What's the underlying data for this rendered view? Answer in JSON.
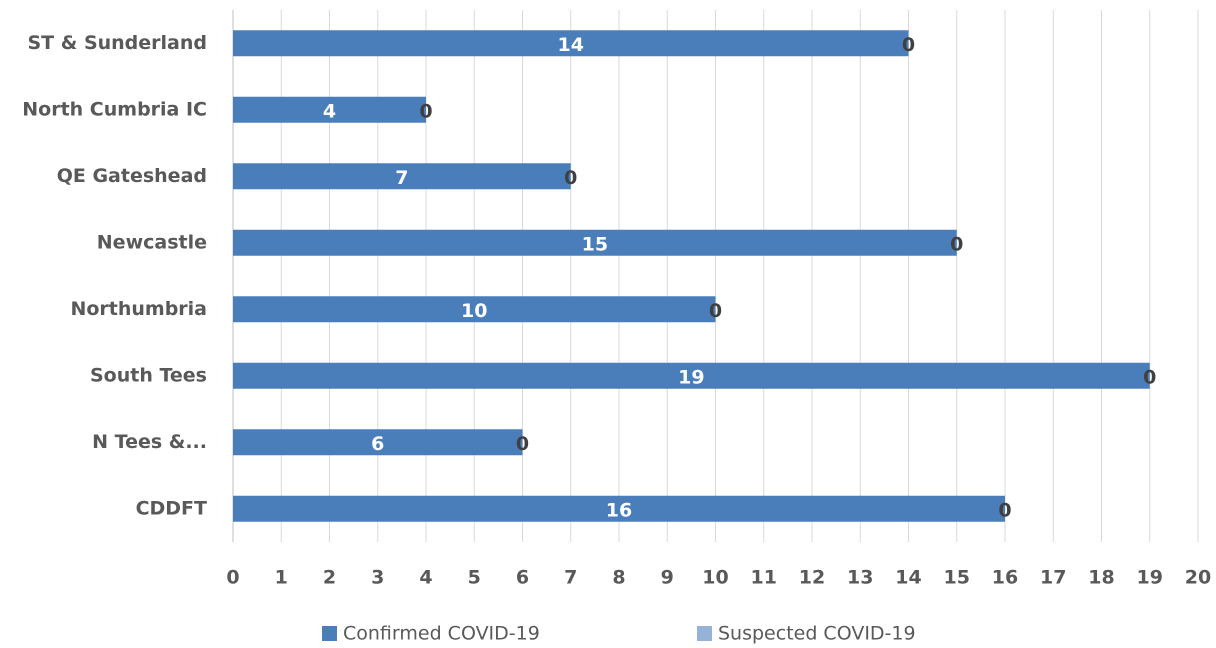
{
  "chart_data": {
    "type": "stacked-barh",
    "categories": [
      "ST & Sunderland",
      "North Cumbria IC",
      "QE Gateshead",
      "Newcastle",
      "Northumbria",
      "South Tees",
      "N Tees &...",
      "CDDFT"
    ],
    "series": [
      {
        "name": "Confirmed COVID-19",
        "color": "#4a7ebb",
        "values": [
          14,
          4,
          7,
          15,
          10,
          19,
          6,
          16
        ]
      },
      {
        "name": "Suspected COVID-19",
        "color": "#95b3d7",
        "values": [
          0,
          0,
          0,
          0,
          0,
          0,
          0,
          0
        ]
      }
    ],
    "xlim": [
      0,
      20
    ],
    "xticks": [
      0,
      1,
      2,
      3,
      4,
      5,
      6,
      7,
      8,
      9,
      10,
      11,
      12,
      13,
      14,
      15,
      16,
      17,
      18,
      19,
      20
    ],
    "grid": true,
    "legend": "bottom"
  }
}
